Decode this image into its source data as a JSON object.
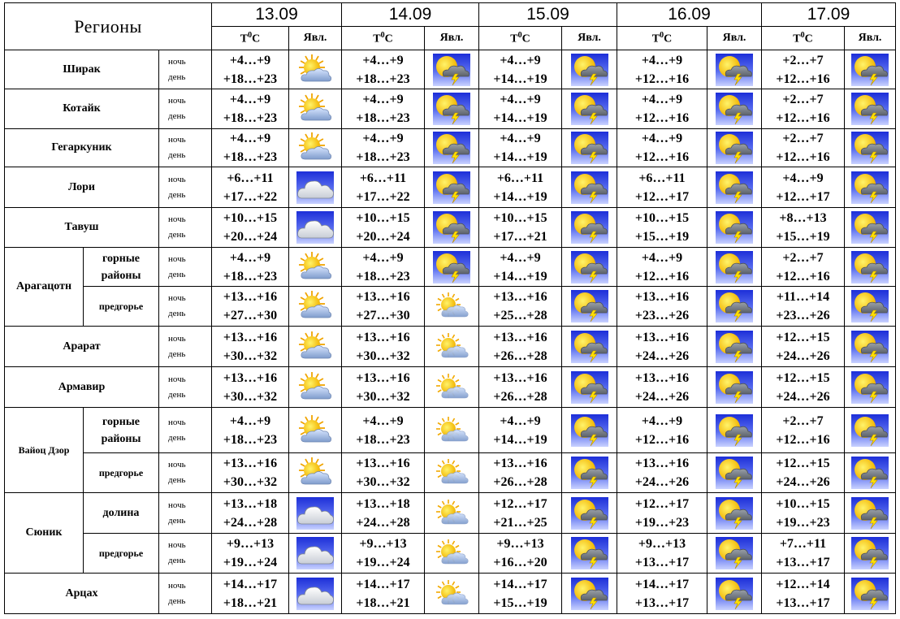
{
  "header": {
    "region_label": "Регионы",
    "temp_label_prefix": "T",
    "temp_label_sup": "0",
    "temp_label_suffix": "C",
    "phen_label": "Явл.",
    "dates": [
      "13.09",
      "14.09",
      "15.09",
      "16.09",
      "17.09"
    ]
  },
  "labels": {
    "night": "ночь",
    "day": "день"
  },
  "rows": [
    {
      "region": "Ширак",
      "sub": null,
      "cells": [
        {
          "n": "+4…+9",
          "d": "+18…+23",
          "icon": "sun-cloud-icon"
        },
        {
          "n": "+4…+9",
          "d": "+18…+23",
          "icon": "thunderstorm-sun-icon"
        },
        {
          "n": "+4…+9",
          "d": "+14…+19",
          "icon": "thunderstorm-sun-icon"
        },
        {
          "n": "+4…+9",
          "d": "+12…+16",
          "icon": "thunderstorm-sun-icon"
        },
        {
          "n": "+2…+7",
          "d": "+12…+16",
          "icon": "thunderstorm-sun-icon"
        }
      ]
    },
    {
      "region": "Котайк",
      "sub": null,
      "cells": [
        {
          "n": "+4…+9",
          "d": "+18…+23",
          "icon": "sun-cloud-icon"
        },
        {
          "n": "+4…+9",
          "d": "+18…+23",
          "icon": "thunderstorm-sun-icon"
        },
        {
          "n": "+4…+9",
          "d": "+14…+19",
          "icon": "thunderstorm-sun-icon"
        },
        {
          "n": "+4…+9",
          "d": "+12…+16",
          "icon": "thunderstorm-sun-icon"
        },
        {
          "n": "+2…+7",
          "d": "+12…+16",
          "icon": "thunderstorm-sun-icon"
        }
      ]
    },
    {
      "region": "Гегаркуник",
      "sub": null,
      "cells": [
        {
          "n": "+4…+9",
          "d": "+18…+23",
          "icon": "sun-cloud-icon"
        },
        {
          "n": "+4…+9",
          "d": "+18…+23",
          "icon": "thunderstorm-sun-icon"
        },
        {
          "n": "+4…+9",
          "d": "+14…+19",
          "icon": "thunderstorm-sun-icon"
        },
        {
          "n": "+4…+9",
          "d": "+12…+16",
          "icon": "thunderstorm-sun-icon"
        },
        {
          "n": "+2…+7",
          "d": "+12…+16",
          "icon": "thunderstorm-sun-icon"
        }
      ]
    },
    {
      "region": "Лори",
      "sub": null,
      "cells": [
        {
          "n": "+6…+11",
          "d": "+17…+22",
          "icon": "cloudy-icon"
        },
        {
          "n": "+6…+11",
          "d": "+17…+22",
          "icon": "thunderstorm-sun-icon"
        },
        {
          "n": "+6…+11",
          "d": "+14…+19",
          "icon": "thunderstorm-sun-icon"
        },
        {
          "n": "+6…+11",
          "d": "+12…+17",
          "icon": "thunderstorm-sun-icon"
        },
        {
          "n": "+4…+9",
          "d": "+12…+17",
          "icon": "thunderstorm-sun-icon"
        }
      ]
    },
    {
      "region": "Тавуш",
      "sub": null,
      "cells": [
        {
          "n": "+10…+15",
          "d": "+20…+24",
          "icon": "cloudy-icon"
        },
        {
          "n": "+10…+15",
          "d": "+20…+24",
          "icon": "thunderstorm-sun-icon"
        },
        {
          "n": "+10…+15",
          "d": "+17…+21",
          "icon": "thunderstorm-sun-icon"
        },
        {
          "n": "+10…+15",
          "d": "+15…+19",
          "icon": "thunderstorm-sun-icon"
        },
        {
          "n": "+8…+13",
          "d": "+15…+19",
          "icon": "thunderstorm-sun-icon"
        }
      ]
    },
    {
      "region": "Арагацотн",
      "sub": "горные районы",
      "cells": [
        {
          "n": "+4…+9",
          "d": "+18…+23",
          "icon": "sun-cloud-icon"
        },
        {
          "n": "+4…+9",
          "d": "+18…+23",
          "icon": "thunderstorm-sun-icon"
        },
        {
          "n": "+4…+9",
          "d": "+14…+19",
          "icon": "thunderstorm-sun-icon"
        },
        {
          "n": "+4…+9",
          "d": "+12…+16",
          "icon": "thunderstorm-sun-icon"
        },
        {
          "n": "+2…+7",
          "d": "+12…+16",
          "icon": "thunderstorm-sun-icon"
        }
      ]
    },
    {
      "region": "Арагацотн",
      "sub": "предгорье",
      "cells": [
        {
          "n": "+13…+16",
          "d": "+27…+30",
          "icon": "sun-cloud-icon"
        },
        {
          "n": "+13…+16",
          "d": "+27…+30",
          "icon": "partly-sunny-icon"
        },
        {
          "n": "+13…+16",
          "d": "+25…+28",
          "icon": "thunderstorm-sun-icon"
        },
        {
          "n": "+13…+16",
          "d": "+23…+26",
          "icon": "thunderstorm-sun-icon"
        },
        {
          "n": "+11…+14",
          "d": "+23…+26",
          "icon": "thunderstorm-sun-icon"
        }
      ]
    },
    {
      "region": "Арарат",
      "sub": null,
      "cells": [
        {
          "n": "+13…+16",
          "d": "+30…+32",
          "icon": "sun-cloud-icon"
        },
        {
          "n": "+13…+16",
          "d": "+30…+32",
          "icon": "partly-sunny-icon"
        },
        {
          "n": "+13…+16",
          "d": "+26…+28",
          "icon": "thunderstorm-sun-icon"
        },
        {
          "n": "+13…+16",
          "d": "+24…+26",
          "icon": "thunderstorm-sun-icon"
        },
        {
          "n": "+12…+15",
          "d": "+24…+26",
          "icon": "thunderstorm-sun-icon"
        }
      ]
    },
    {
      "region": "Армавир",
      "sub": null,
      "cells": [
        {
          "n": "+13…+16",
          "d": "+30…+32",
          "icon": "sun-cloud-icon"
        },
        {
          "n": "+13…+16",
          "d": "+30…+32",
          "icon": "partly-sunny-icon"
        },
        {
          "n": "+13…+16",
          "d": "+26…+28",
          "icon": "thunderstorm-sun-icon"
        },
        {
          "n": "+13…+16",
          "d": "+24…+26",
          "icon": "thunderstorm-sun-icon"
        },
        {
          "n": "+12…+15",
          "d": "+24…+26",
          "icon": "thunderstorm-sun-icon"
        }
      ]
    },
    {
      "region": "Вайоц Дзор",
      "sub": "горные районы",
      "cells": [
        {
          "n": "+4…+9",
          "d": "+18…+23",
          "icon": "sun-cloud-icon"
        },
        {
          "n": "+4…+9",
          "d": "+18…+23",
          "icon": "partly-sunny-icon"
        },
        {
          "n": "+4…+9",
          "d": "+14…+19",
          "icon": "thunderstorm-sun-icon"
        },
        {
          "n": "+4…+9",
          "d": "+12…+16",
          "icon": "thunderstorm-sun-icon"
        },
        {
          "n": "+2…+7",
          "d": "+12…+16",
          "icon": "thunderstorm-sun-icon"
        }
      ]
    },
    {
      "region": "Вайоц Дзор",
      "sub": "предгорье",
      "cells": [
        {
          "n": "+13…+16",
          "d": "+30…+32",
          "icon": "sun-cloud-icon"
        },
        {
          "n": "+13…+16",
          "d": "+30…+32",
          "icon": "partly-sunny-icon"
        },
        {
          "n": "+13…+16",
          "d": "+26…+28",
          "icon": "thunderstorm-sun-icon"
        },
        {
          "n": "+13…+16",
          "d": "+24…+26",
          "icon": "thunderstorm-sun-icon"
        },
        {
          "n": "+12…+15",
          "d": "+24…+26",
          "icon": "thunderstorm-sun-icon"
        }
      ]
    },
    {
      "region": "Сюник",
      "sub": "долина",
      "cells": [
        {
          "n": "+13…+18",
          "d": "+24…+28",
          "icon": "cloudy-icon"
        },
        {
          "n": "+13…+18",
          "d": "+24…+28",
          "icon": "partly-sunny-icon"
        },
        {
          "n": "+12…+17",
          "d": "+21…+25",
          "icon": "thunderstorm-sun-icon"
        },
        {
          "n": "+12…+17",
          "d": "+19…+23",
          "icon": "thunderstorm-sun-icon"
        },
        {
          "n": "+10…+15",
          "d": "+19…+23",
          "icon": "thunderstorm-sun-icon"
        }
      ]
    },
    {
      "region": "Сюник",
      "sub": "предгорье",
      "cells": [
        {
          "n": "+9…+13",
          "d": "+19…+24",
          "icon": "cloudy-icon"
        },
        {
          "n": "+9…+13",
          "d": "+19…+24",
          "icon": "partly-sunny-icon"
        },
        {
          "n": "+9…+13",
          "d": "+16…+20",
          "icon": "thunderstorm-sun-icon"
        },
        {
          "n": "+9…+13",
          "d": "+13…+17",
          "icon": "thunderstorm-sun-icon"
        },
        {
          "n": "+7…+11",
          "d": "+13…+17",
          "icon": "thunderstorm-sun-icon"
        }
      ]
    },
    {
      "region": "Арцах",
      "sub": null,
      "cells": [
        {
          "n": "+14…+17",
          "d": "+18…+21",
          "icon": "cloudy-icon"
        },
        {
          "n": "+14…+17",
          "d": "+18…+21",
          "icon": "partly-sunny-icon"
        },
        {
          "n": "+14…+17",
          "d": "+15…+19",
          "icon": "thunderstorm-sun-icon"
        },
        {
          "n": "+14…+17",
          "d": "+13…+17",
          "icon": "thunderstorm-sun-icon"
        },
        {
          "n": "+12…+14",
          "d": "+13…+17",
          "icon": "thunderstorm-sun-icon"
        }
      ]
    }
  ]
}
